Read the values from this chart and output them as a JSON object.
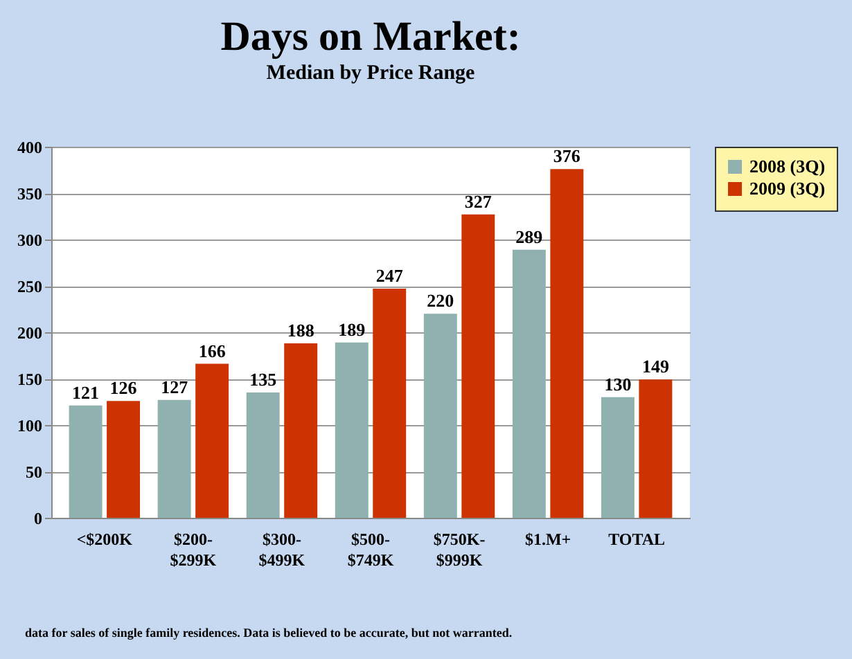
{
  "chart_data": {
    "type": "bar",
    "title": "Days on Market:",
    "subtitle": "Median by Price Range",
    "categories": [
      "<$200K",
      "$200-$299K",
      "$300-$499K",
      "$500-$749K",
      "$750K-$999K",
      "$1.M+",
      "TOTAL"
    ],
    "series": [
      {
        "name": "2008 (3Q)",
        "color": "#8fb2b0",
        "values": [
          121,
          127,
          135,
          189,
          220,
          289,
          130
        ]
      },
      {
        "name": "2009 (3Q)",
        "color": "#cc3300",
        "values": [
          126,
          166,
          188,
          247,
          327,
          376,
          149
        ]
      }
    ],
    "ylim": [
      0,
      400
    ],
    "yticks": [
      0,
      50,
      100,
      150,
      200,
      250,
      300,
      350,
      400
    ],
    "grid": "y",
    "legend": "right",
    "data_labels": true,
    "annotations": [
      "data for sales of single family residences.  Data is believed to be accurate, but not warranted."
    ]
  }
}
